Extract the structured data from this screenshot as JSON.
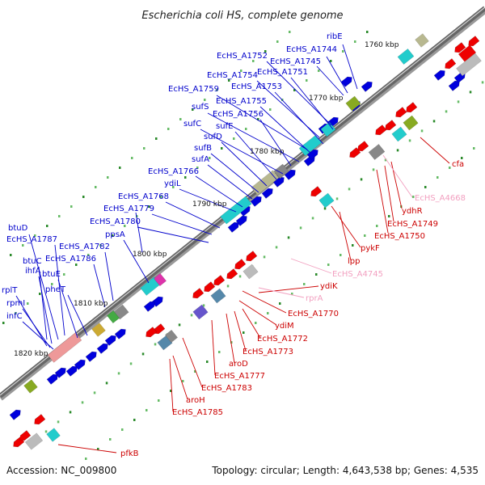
{
  "title": "Escherichia coli HS, complete genome",
  "footer": {
    "accession": "Accession: NC_009800",
    "summary": "Topology: circular; Length: 4,643,538 bp; Genes: 4,535"
  },
  "colors": {
    "forward_label": "#0000cc",
    "reverse_label": "#cc0000",
    "pseudo_label": "#f2a0c0",
    "forward_gene": "#0000dd",
    "reverse_gene": "#ee0000",
    "backbone": "#666666",
    "cyan_feature": "#22cccc",
    "olive_feature": "#88aa22"
  },
  "scale_labels": [
    "1760 kbp",
    "1770 kbp",
    "1780 kbp",
    "1790 kbp",
    "1800 kbp",
    "1810 kbp",
    "1820 kbp"
  ],
  "forward_labels": [
    "ribE",
    "EcHS_A1744",
    "EcHS_A1745",
    "EcHS_A1752",
    "EcHS_A1751",
    "EcHS_A1754",
    "EcHS_A1753",
    "EcHS_A1759",
    "EcHS_A1755",
    "sufS",
    "EcHS_A1756",
    "sufC",
    "sufE",
    "sufD",
    "sufB",
    "sufA",
    "EcHS_A1766",
    "ydiL",
    "EcHS_A1768",
    "EcHS_A1779",
    "EcHS_A1780",
    "ppsA",
    "btuD",
    "EcHS_A1787",
    "EcHS_A1782",
    "EcHS_A1786",
    "btuC",
    "ihfA",
    "btuE",
    "pheT",
    "rplT",
    "rpmI",
    "infC"
  ],
  "reverse_labels": [
    "cfa",
    "ydhR",
    "EcHS_A1749",
    "EcHS_A1750",
    "pykF",
    "lpp",
    "ydiK",
    "EcHS_A1770",
    "ydiM",
    "EcHS_A1772",
    "EcHS_A1773",
    "aroD",
    "EcHS_A1777",
    "EcHS_A1783",
    "aroH",
    "EcHS_A1785",
    "pfkB"
  ],
  "pseudo_labels": [
    "EcHS_A4668",
    "EcHS_A4745",
    "rprA"
  ]
}
